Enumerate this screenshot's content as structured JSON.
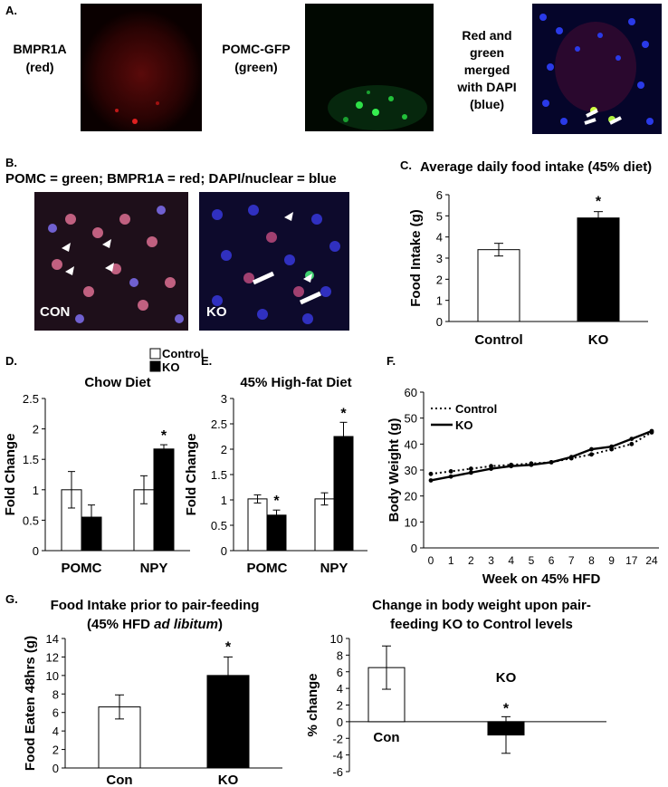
{
  "panelA": {
    "letter": "A.",
    "labels": [
      {
        "line1": "BMPR1A",
        "line2": "(red)"
      },
      {
        "line1": "POMC-GFP",
        "line2": "(green)"
      },
      {
        "line1": "Red and",
        "line2": "green",
        "line3": "merged",
        "line4": "with DAPI",
        "line5": "(blue)"
      }
    ]
  },
  "panelB": {
    "letter": "B.",
    "legend": "POMC = green; BMPR1A = red; DAPI/nuclear = blue",
    "image_labels": [
      "CON",
      "KO"
    ]
  },
  "colors": {
    "control": "#ffffff",
    "ko": "#000000",
    "red_stain": "#c0201e",
    "green_stain": "#2fd04a",
    "blue_stain": "#2a2ee0"
  },
  "chart_data": [
    {
      "id": "C",
      "letter": "C.",
      "type": "bar",
      "title": "Average daily food intake (45% diet)",
      "categories": [
        "Control",
        "KO"
      ],
      "values": [
        3.4,
        4.9
      ],
      "errors": [
        0.3,
        0.3
      ],
      "significance": [
        "",
        "*"
      ],
      "ylabel": "Food Intake (g)",
      "ylim": [
        0,
        6
      ],
      "yticks": [
        "0",
        "1",
        "2",
        "3",
        "4",
        "5",
        "6"
      ]
    },
    {
      "id": "D",
      "letter": "D.",
      "type": "bar",
      "title": "Chow Diet",
      "categories": [
        "POMC",
        "NPY"
      ],
      "series": [
        {
          "name": "Control",
          "values": [
            1.0,
            1.0
          ],
          "errors": [
            0.3,
            0.23
          ]
        },
        {
          "name": "KO",
          "values": [
            0.55,
            1.67
          ],
          "errors": [
            0.2,
            0.07
          ]
        }
      ],
      "significance": [
        "",
        "*"
      ],
      "ylabel": "Fold Change",
      "ylim": [
        0,
        2.5
      ],
      "yticks": [
        "0",
        "0.5",
        "1",
        "1.5",
        "2",
        "2.5"
      ]
    },
    {
      "id": "E",
      "letter": "E.",
      "type": "bar",
      "title": "45% High-fat Diet",
      "categories": [
        "POMC",
        "NPY"
      ],
      "series": [
        {
          "name": "Control",
          "values": [
            1.02,
            1.02
          ],
          "errors": [
            0.08,
            0.12
          ]
        },
        {
          "name": "KO",
          "values": [
            0.7,
            2.25
          ],
          "errors": [
            0.1,
            0.28
          ]
        }
      ],
      "significance": [
        "*",
        "*"
      ],
      "ylabel": "Fold Change",
      "ylim": [
        0,
        3
      ],
      "yticks": [
        "0",
        "0.5",
        "1",
        "1.5",
        "2",
        "2.5",
        "3"
      ]
    },
    {
      "id": "F",
      "letter": "F.",
      "type": "line",
      "xlabel": "Week on 45% HFD",
      "ylabel": "Body Weight (g)",
      "x": [
        "0",
        "1",
        "2",
        "3",
        "4",
        "5",
        "6",
        "7",
        "8",
        "9",
        "17",
        "24"
      ],
      "series": [
        {
          "name": "Control",
          "values": [
            28.5,
            29.5,
            30.5,
            31.5,
            32,
            32.5,
            33,
            34.5,
            36,
            38,
            40,
            44.5
          ]
        },
        {
          "name": "KO",
          "values": [
            26,
            27.5,
            29,
            30.5,
            31.5,
            32,
            33,
            35,
            38,
            39,
            42,
            45
          ]
        }
      ],
      "ylim": [
        0,
        60
      ],
      "yticks": [
        "0",
        "10",
        "20",
        "30",
        "40",
        "50",
        "60"
      ],
      "legend": "top-left"
    },
    {
      "id": "G1",
      "letter": "G.",
      "type": "bar",
      "title": "Food Intake prior to pair-feeding",
      "subtitle_pre": "(45% HFD ",
      "subtitle_em": "ad libitum",
      "subtitle_post": ")",
      "categories": [
        "Con",
        "KO"
      ],
      "values": [
        6.6,
        10.0
      ],
      "errors": [
        1.3,
        2.0
      ],
      "significance": [
        "",
        "*"
      ],
      "ylabel": "Food Eaten 48hrs (g)",
      "ylim": [
        0,
        14
      ],
      "yticks": [
        "0",
        "2",
        "4",
        "6",
        "8",
        "10",
        "12",
        "14"
      ]
    },
    {
      "id": "G2",
      "type": "bar",
      "title_line1": "Change in body weight upon pair-",
      "title_line2": "feeding KO to Control levels",
      "categories": [
        "Con",
        "KO"
      ],
      "values": [
        6.5,
        -1.6
      ],
      "errors": [
        2.6,
        2.2
      ],
      "significance": [
        "",
        "*"
      ],
      "ylabel": "% change",
      "ylim": [
        -6,
        10
      ],
      "yticks": [
        "-6",
        "-4",
        "-2",
        "0",
        "2",
        "4",
        "6",
        "8",
        "10"
      ]
    }
  ]
}
